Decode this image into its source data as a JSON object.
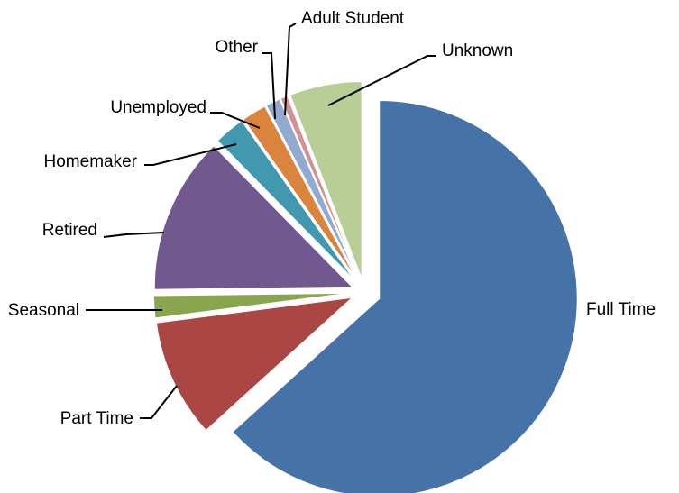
{
  "chart_data": {
    "type": "pie",
    "title": "",
    "start_angle_deg": 0,
    "direction": "clockwise",
    "exploded": true,
    "slices": [
      {
        "label": "Full Time",
        "value": 62.0,
        "color": "#4572A7"
      },
      {
        "label": "Part Time",
        "value": 9.5,
        "color": "#AA4643"
      },
      {
        "label": "Seasonal",
        "value": 1.8,
        "color": "#89A54E"
      },
      {
        "label": "Retired",
        "value": 12.6,
        "color": "#71588F"
      },
      {
        "label": "Homemaker",
        "value": 2.5,
        "color": "#4198AF"
      },
      {
        "label": "Unemployed",
        "value": 2.0,
        "color": "#DB843D"
      },
      {
        "label": "Other",
        "value": 1.2,
        "color": "#93A9CF"
      },
      {
        "label": "Adult Student",
        "value": 0.6,
        "color": "#D19392"
      },
      {
        "label": "Unknown",
        "value": 5.8,
        "color": "#B9CD96"
      }
    ]
  }
}
